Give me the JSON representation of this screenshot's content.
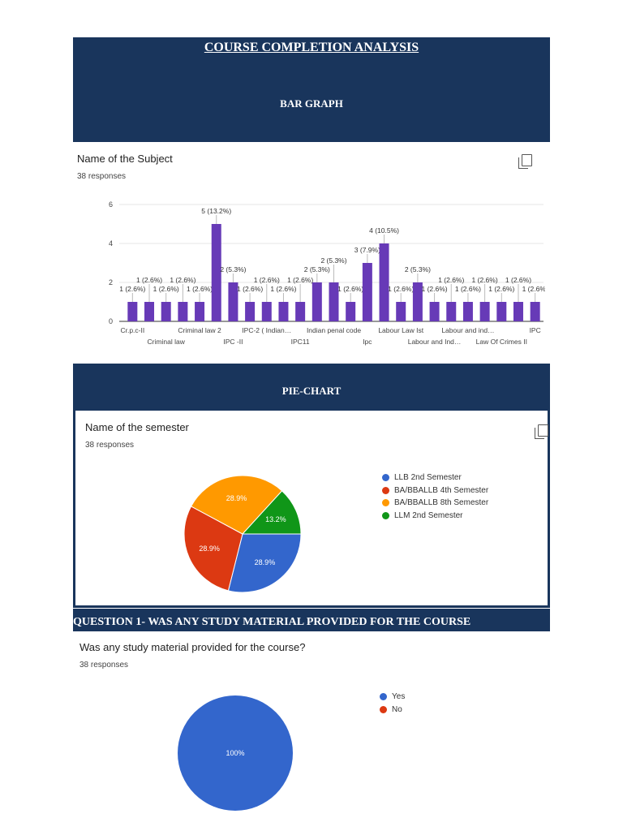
{
  "header": {
    "title": "COURSE COMPLETION ANALYSIS",
    "section1": "BAR GRAPH",
    "section2": "PIE-CHART",
    "section3": "QUESTION 1- WAS ANY STUDY MATERIAL PROVIDED FOR THE COURSE"
  },
  "colors": {
    "banner": "#19355c",
    "bar": "#673ab7",
    "blue": "#3366cc",
    "red": "#dc3912",
    "orange": "#ff9900",
    "green": "#109618"
  },
  "chart_data": [
    {
      "type": "bar",
      "title": "Name of the Subject",
      "subtitle": "38 responses",
      "categories": [
        "Cr.p.c-II",
        "",
        "Criminal law",
        "",
        "Criminal law 2",
        "",
        "IPC -II",
        "",
        "IPC-2 ( Indian…",
        "",
        "IPC11",
        "",
        "Indian penal code",
        "",
        "Ipc",
        "",
        "Labour Law Ist",
        "",
        "Labour and Ind…",
        "",
        "Labour and ind…",
        "",
        "Law Of Crimes II",
        "",
        "IPC"
      ],
      "values": [
        1,
        1,
        1,
        1,
        1,
        5,
        2,
        1,
        1,
        1,
        1,
        2,
        2,
        1,
        3,
        4,
        1,
        2,
        1,
        1,
        1,
        1,
        1,
        1,
        1
      ],
      "data_labels": [
        "1 (2.6%)",
        "1 (2.6%)",
        "1 (2.6%)",
        "1 (2.6%)",
        "1 (2.6%)",
        "5 (13.2%)",
        "2 (5.3%)",
        "1 (2.6%)",
        "1 (2.6%)",
        "1 (2.6%)",
        "1 (2.6%)",
        "2 (5.3%)",
        "2 (5.3%)",
        "1 (2.6%)",
        "3 (7.9%)",
        "4 (10.5%)",
        "1 (2.6%)",
        "2 (5.3%)",
        "1 (2.6%)",
        "1 (2.6%)",
        "1 (2.6%)",
        "1 (2.6%)",
        "1 (2.6%)",
        "1 (2.6%)",
        "1 (2.6%)"
      ],
      "yticks": [
        0,
        2,
        4,
        6
      ],
      "ylim": [
        0,
        6
      ],
      "grid": true
    },
    {
      "type": "pie",
      "title": "Name of the semester",
      "subtitle": "38 responses",
      "labels": [
        "LLB 2nd Semester",
        "BA/BBALLB 4th Semester",
        "BA/BBALLB 8th Semester",
        "LLM 2nd Semester"
      ],
      "values": [
        28.9,
        28.9,
        28.9,
        13.2
      ],
      "slice_labels": [
        "28.9%",
        "28.9%",
        "28.9%",
        "13.2%"
      ],
      "colors": [
        "#3366cc",
        "#dc3912",
        "#ff9900",
        "#109618"
      ],
      "legend": "right"
    },
    {
      "type": "pie",
      "title": "Was any study material provided for the course?",
      "subtitle": "38 responses",
      "labels": [
        "Yes",
        "No"
      ],
      "values": [
        100,
        0
      ],
      "slice_labels": [
        "100%",
        ""
      ],
      "colors": [
        "#3366cc",
        "#dc3912"
      ],
      "legend": "right"
    }
  ]
}
